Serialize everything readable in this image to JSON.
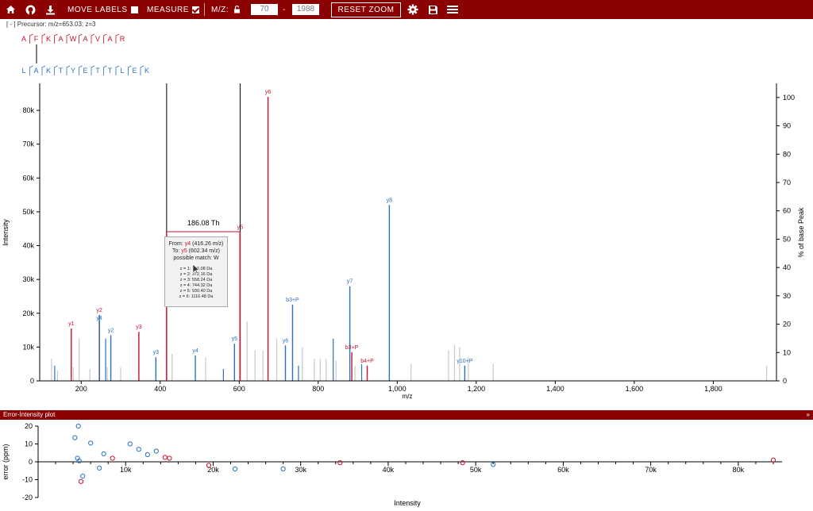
{
  "toolbar": {
    "move_labels": "MOVE LABELS",
    "measure": "MEASURE",
    "mz_label": "M/Z:",
    "mz_min": "70",
    "mz_dash": "-",
    "mz_max": "1988",
    "reset_zoom": "RESET ZOOM"
  },
  "precursor": "[ - ] Precursor: m/z=653.03; z=3",
  "peptide1": [
    "A",
    "F",
    "K",
    "A",
    "W",
    "A",
    "V",
    "A",
    "R"
  ],
  "peptide2": [
    "L",
    "A",
    "K",
    "T",
    "Y",
    "E",
    "T",
    "T",
    "L",
    "E",
    "K"
  ],
  "measure_box": {
    "th": "186.08 Th",
    "from_prefix": "From: ",
    "from_ion": "y4",
    "from_rest": " (416.26 m/z)",
    "to_prefix": "To: ",
    "to_ion": "y5",
    "to_rest": " (602.34 m/z)",
    "possible": "possible match: W",
    "charges": [
      "z = 1: 186.08 Da",
      "z = 2: 372.16 Da",
      "z = 3: 558.24 Da",
      "z = 4: 744.32 Da",
      "z = 5: 930.40 Da",
      "z = 6: 1116.48 Da"
    ]
  },
  "error_plot_title": "Error-Intensity plot",
  "colors": {
    "red": "#c8102e",
    "blue": "#2a72c0",
    "gray": "#c8c8c8",
    "dark": "#8b0000"
  },
  "chart_data": [
    {
      "type": "bar",
      "xlabel": "m/z",
      "ylabel": "Intensity",
      "y2label": "% of base Peak",
      "xlim": [
        95,
        1960
      ],
      "ylim": [
        0,
        88000
      ],
      "y2lim": [
        0,
        105
      ],
      "xticks": [
        "200",
        "400",
        "600",
        "800",
        "1,000",
        "1,200",
        "1,400",
        "1,600",
        "1,800"
      ],
      "xtick_values": [
        200,
        400,
        600,
        800,
        1000,
        1200,
        1400,
        1600,
        1800
      ],
      "yticks": [
        "0",
        "10k",
        "20k",
        "30k",
        "40k",
        "50k",
        "60k",
        "70k",
        "80k"
      ],
      "ytick_values": [
        0,
        10000,
        20000,
        30000,
        40000,
        50000,
        60000,
        70000,
        80000
      ],
      "y2ticks": [
        "0",
        "10",
        "20",
        "30",
        "40",
        "50",
        "60",
        "70",
        "80",
        "90",
        "100"
      ],
      "peaks": [
        {
          "x": 175,
          "y": 15500,
          "color": "red",
          "label": "y1"
        },
        {
          "x": 246,
          "y": 19500,
          "color": "red",
          "label": "y2"
        },
        {
          "x": 246,
          "y": 19500,
          "color": "blue",
          "label": "y4",
          "dy": 10
        },
        {
          "x": 275,
          "y": 13500,
          "color": "blue",
          "label": "y2"
        },
        {
          "x": 346,
          "y": 14500,
          "color": "red",
          "label": "y3"
        },
        {
          "x": 389,
          "y": 7000,
          "color": "blue",
          "label": "y3"
        },
        {
          "x": 489,
          "y": 7500,
          "color": "blue",
          "label": "y4"
        },
        {
          "x": 588,
          "y": 11000,
          "color": "blue",
          "label": "y5"
        },
        {
          "x": 602,
          "y": 44000,
          "color": "red",
          "label": "y5"
        },
        {
          "x": 673,
          "y": 84000,
          "color": "red",
          "label": "y6"
        },
        {
          "x": 717,
          "y": 10500,
          "color": "blue",
          "label": "y6"
        },
        {
          "x": 735,
          "y": 22500,
          "color": "blue",
          "label": "b3+P"
        },
        {
          "x": 880,
          "y": 28000,
          "color": "blue",
          "label": "y7"
        },
        {
          "x": 885,
          "y": 8500,
          "color": "red",
          "label": "b3+P"
        },
        {
          "x": 924,
          "y": 4500,
          "color": "red",
          "label": "b4+P"
        },
        {
          "x": 980,
          "y": 52000,
          "color": "blue",
          "label": "y8"
        },
        {
          "x": 1171,
          "y": 4500,
          "color": "blue",
          "label": "y10+P"
        }
      ],
      "unlabeled_blue": [
        [
          133,
          4500
        ],
        [
          262,
          12500
        ],
        [
          560,
          3500
        ],
        [
          750,
          4500
        ],
        [
          838,
          12500
        ],
        [
          910,
          5000
        ]
      ],
      "gray_peaks": [
        [
          125,
          6500
        ],
        [
          140,
          3000
        ],
        [
          180,
          4000
        ],
        [
          195,
          12500
        ],
        [
          222,
          3500
        ],
        [
          266,
          4000
        ],
        [
          300,
          4000
        ],
        [
          430,
          8000
        ],
        [
          515,
          7000
        ],
        [
          620,
          17500
        ],
        [
          640,
          9000
        ],
        [
          660,
          9000
        ],
        [
          695,
          12500
        ],
        [
          760,
          10000
        ],
        [
          790,
          6500
        ],
        [
          805,
          6500
        ],
        [
          820,
          6500
        ],
        [
          845,
          6000
        ],
        [
          893,
          4500
        ],
        [
          1035,
          5000
        ],
        [
          1130,
          9000
        ],
        [
          1145,
          10500
        ],
        [
          1158,
          10000
        ],
        [
          1180,
          7000
        ],
        [
          1243,
          5000
        ],
        [
          1935,
          4500
        ]
      ],
      "measure": {
        "from": 416.26,
        "to": 602.34
      }
    },
    {
      "type": "scatter",
      "xlabel": "Intensity",
      "ylabel": "error (ppm)",
      "xlim": [
        0,
        85000
      ],
      "ylim": [
        -20,
        20
      ],
      "xticks": [
        "10k",
        "20k",
        "30k",
        "40k",
        "50k",
        "60k",
        "70k",
        "80k"
      ],
      "xtick_values": [
        10000,
        20000,
        30000,
        40000,
        50000,
        60000,
        70000,
        80000
      ],
      "yticks": [
        "20",
        "10",
        "0",
        "-10",
        "-20"
      ],
      "ytick_values": [
        20,
        10,
        0,
        -10,
        -20
      ],
      "points": [
        {
          "x": 4600,
          "y": 20,
          "color": "blue"
        },
        {
          "x": 4200,
          "y": 13.5,
          "color": "blue"
        },
        {
          "x": 4500,
          "y": 2,
          "color": "blue"
        },
        {
          "x": 4700,
          "y": 0.5,
          "color": "blue"
        },
        {
          "x": 5100,
          "y": -8,
          "color": "blue"
        },
        {
          "x": 4900,
          "y": -11,
          "color": "red"
        },
        {
          "x": 6000,
          "y": 10.5,
          "color": "blue"
        },
        {
          "x": 7000,
          "y": -3.5,
          "color": "blue"
        },
        {
          "x": 7500,
          "y": 4.5,
          "color": "blue"
        },
        {
          "x": 8500,
          "y": 2,
          "color": "red"
        },
        {
          "x": 10500,
          "y": 10,
          "color": "blue"
        },
        {
          "x": 11500,
          "y": 7,
          "color": "blue"
        },
        {
          "x": 12500,
          "y": 4,
          "color": "blue"
        },
        {
          "x": 13500,
          "y": 6,
          "color": "blue"
        },
        {
          "x": 14500,
          "y": 2.5,
          "color": "red"
        },
        {
          "x": 15000,
          "y": 2,
          "color": "red"
        },
        {
          "x": 19500,
          "y": -2,
          "color": "red"
        },
        {
          "x": 22500,
          "y": -4,
          "color": "blue"
        },
        {
          "x": 28000,
          "y": -4,
          "color": "blue"
        },
        {
          "x": 34500,
          "y": -0.5,
          "color": "red"
        },
        {
          "x": 48500,
          "y": -0.5,
          "color": "red"
        },
        {
          "x": 52000,
          "y": -1.5,
          "color": "blue"
        },
        {
          "x": 84000,
          "y": 1,
          "color": "red"
        }
      ]
    }
  ]
}
